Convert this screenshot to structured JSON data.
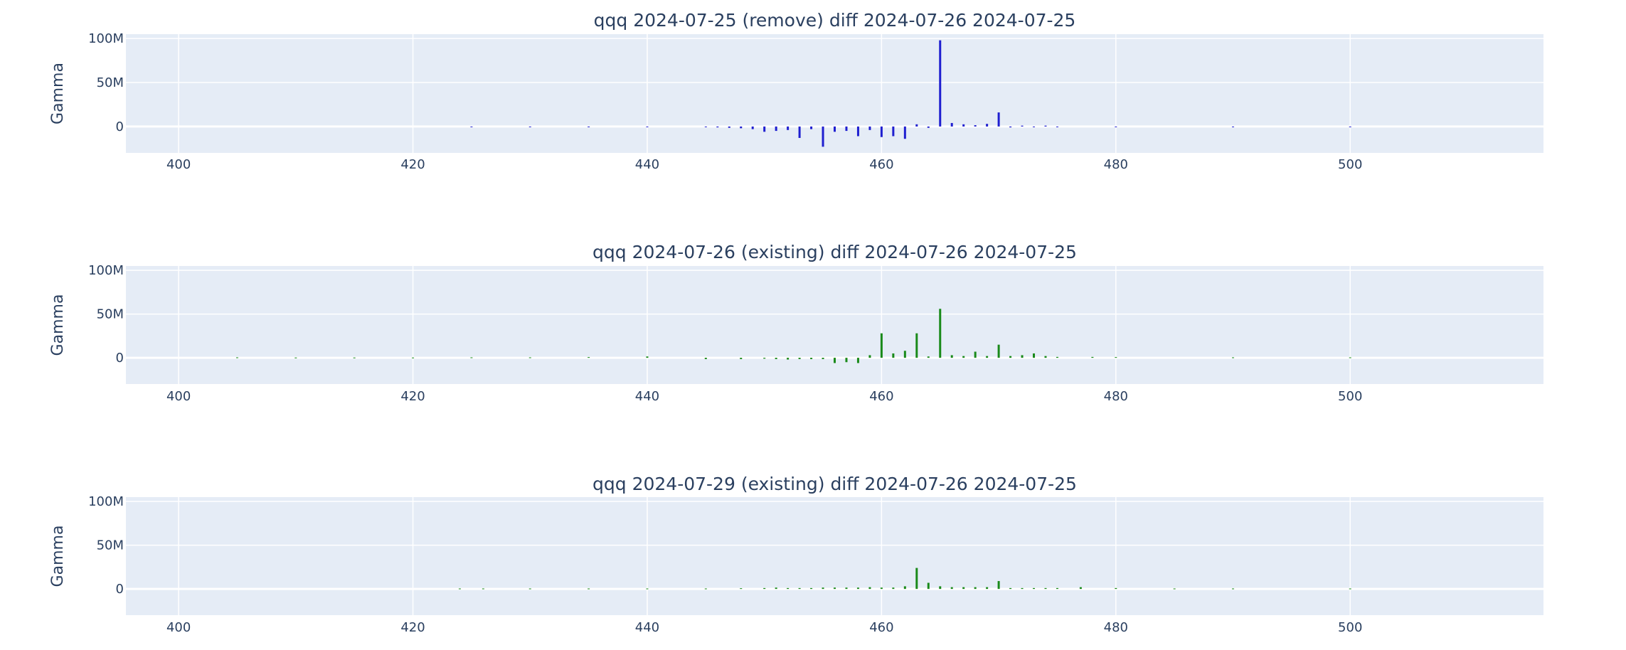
{
  "chart_data": [
    {
      "type": "bar",
      "title": "qqq 2024-07-25 (remove) diff 2024-07-26 2024-07-25",
      "ylabel": "Gamma",
      "xlim": [
        395.5,
        516.5
      ],
      "ylim": [
        -30000000,
        105000000
      ],
      "x_ticks": [
        "400",
        "420",
        "440",
        "460",
        "480",
        "500"
      ],
      "y_ticks": [
        "100M",
        "50M",
        "0"
      ],
      "color": "#1f1fd0",
      "grid": true,
      "x": [
        425,
        430,
        435,
        440,
        445,
        446,
        447,
        448,
        449,
        450,
        451,
        452,
        453,
        454,
        455,
        456,
        457,
        458,
        459,
        460,
        461,
        462,
        463,
        464,
        465,
        466,
        467,
        468,
        469,
        470,
        471,
        472,
        473,
        474,
        475,
        480,
        490,
        500
      ],
      "values": [
        -300000,
        -300000,
        -400000,
        -500000,
        -800000,
        -1000000,
        -1500000,
        -2000000,
        -3000000,
        -6000000,
        -5000000,
        -4000000,
        -13000000,
        -3000000,
        -23000000,
        -6000000,
        -5000000,
        -11000000,
        -4000000,
        -12000000,
        -11000000,
        -14000000,
        2500000,
        -1500000,
        98000000,
        4000000,
        2500000,
        1500000,
        3000000,
        16000000,
        -1000000,
        1000000,
        -500000,
        1000000,
        -400000,
        -300000,
        -300000,
        -300000
      ]
    },
    {
      "type": "bar",
      "title": "qqq 2024-07-26 (existing) diff 2024-07-26 2024-07-25",
      "ylabel": "Gamma",
      "xlim": [
        395.5,
        516.5
      ],
      "ylim": [
        -30000000,
        105000000
      ],
      "x_ticks": [
        "400",
        "420",
        "440",
        "460",
        "480",
        "500"
      ],
      "y_ticks": [
        "100M",
        "50M",
        "0"
      ],
      "color": "#1a8a1a",
      "grid": true,
      "x": [
        405,
        410,
        415,
        420,
        425,
        430,
        435,
        440,
        445,
        448,
        450,
        451,
        452,
        453,
        454,
        455,
        456,
        457,
        458,
        459,
        460,
        461,
        462,
        463,
        464,
        465,
        466,
        467,
        468,
        469,
        470,
        471,
        472,
        473,
        474,
        475,
        478,
        480,
        490,
        500
      ],
      "values": [
        500000,
        300000,
        300000,
        300000,
        500000,
        500000,
        800000,
        1500000,
        -1500000,
        -1500000,
        -1000000,
        -1500000,
        -2000000,
        -1500000,
        -1500000,
        -1500000,
        -6000000,
        -5000000,
        -6000000,
        3000000,
        28000000,
        5000000,
        8000000,
        28000000,
        1500000,
        56000000,
        3000000,
        2000000,
        7000000,
        2000000,
        15000000,
        2000000,
        3000000,
        5000000,
        2000000,
        1000000,
        1000000,
        800000,
        500000,
        500000
      ]
    },
    {
      "type": "bar",
      "title": "qqq 2024-07-29 (existing) diff 2024-07-26 2024-07-25",
      "ylabel": "Gamma",
      "xlim": [
        395.5,
        516.5
      ],
      "ylim": [
        -30000000,
        105000000
      ],
      "x_ticks": [
        "400",
        "420",
        "440",
        "460",
        "480",
        "500"
      ],
      "y_ticks": [
        "100M",
        "50M",
        "0"
      ],
      "color": "#1a8a1a",
      "grid": true,
      "x": [
        424,
        426,
        430,
        435,
        440,
        445,
        448,
        450,
        451,
        452,
        453,
        454,
        455,
        456,
        457,
        458,
        459,
        460,
        461,
        462,
        463,
        464,
        465,
        466,
        467,
        468,
        469,
        470,
        471,
        472,
        473,
        474,
        475,
        477,
        480,
        485,
        490,
        500
      ],
      "values": [
        500000,
        500000,
        500000,
        500000,
        500000,
        500000,
        800000,
        1000000,
        1500000,
        1000000,
        1000000,
        1000000,
        1500000,
        1500000,
        1500000,
        1500000,
        2000000,
        1500000,
        1500000,
        3000000,
        24000000,
        7000000,
        3000000,
        2000000,
        2000000,
        2000000,
        2000000,
        9000000,
        1000000,
        1000000,
        1000000,
        1000000,
        1000000,
        2000000,
        1000000,
        500000,
        500000,
        500000
      ]
    }
  ]
}
